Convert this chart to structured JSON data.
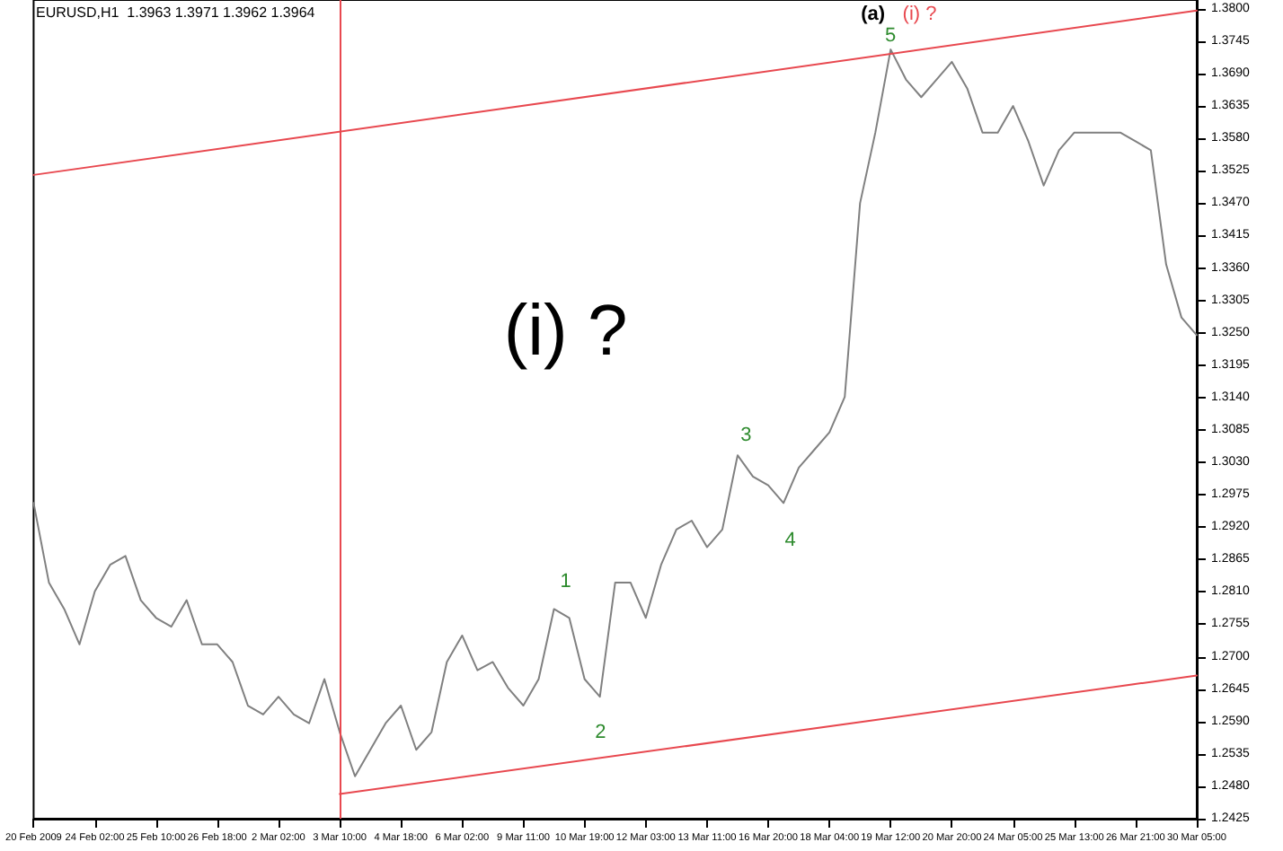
{
  "chart_data": {
    "type": "line",
    "title": "EURUSD,H1  1.3963 1.3971 1.3962 1.3964",
    "categories": [
      "20 Feb 2009",
      null,
      null,
      null,
      "24 Feb 02:00",
      null,
      null,
      null,
      "25 Feb 10:00",
      null,
      null,
      null,
      "26 Feb 18:00",
      null,
      null,
      null,
      "2 Mar 02:00",
      null,
      null,
      null,
      "3 Mar 10:00",
      null,
      null,
      null,
      "4 Mar 18:00",
      null,
      null,
      null,
      "6 Mar 02:00",
      null,
      null,
      null,
      "9 Mar 11:00",
      null,
      null,
      null,
      "10 Mar 19:00",
      null,
      null,
      null,
      "12 Mar 03:00",
      null,
      null,
      null,
      "13 Mar 11:00",
      null,
      null,
      null,
      "16 Mar 20:00",
      null,
      null,
      null,
      "18 Mar 04:00",
      null,
      null,
      null,
      "19 Mar 12:00",
      null,
      null,
      null,
      "20 Mar 20:00",
      null,
      null,
      null,
      "24 Mar 05:00",
      null,
      null,
      null,
      "25 Mar 13:00",
      null,
      null,
      null,
      "26 Mar 21:00",
      null,
      null,
      null,
      "30 Mar 05:00"
    ],
    "series": [
      {
        "color": "#808080",
        "values": [
          1.2961,
          1.2826,
          1.2781,
          1.2721,
          1.2811,
          1.2856,
          1.2871,
          1.2796,
          1.2766,
          1.2751,
          1.2796,
          1.2721,
          1.2721,
          1.2691,
          1.2617,
          1.2602,
          1.2632,
          1.2602,
          1.2587,
          1.2662,
          1.2572,
          1.2497,
          1.2542,
          1.2587,
          1.2617,
          1.2542,
          1.2572,
          1.2691,
          1.2736,
          1.2677,
          1.2691,
          1.2647,
          1.2617,
          1.2662,
          1.2781,
          1.2766,
          1.2662,
          1.2632,
          1.2826,
          1.2826,
          1.2766,
          1.2856,
          1.2916,
          1.2931,
          1.2886,
          1.2916,
          1.3042,
          1.3006,
          1.2991,
          1.2961,
          1.3021,
          1.3051,
          1.3081,
          1.3141,
          1.347,
          1.359,
          1.3731,
          1.368,
          1.365,
          1.368,
          1.371,
          1.3665,
          1.359,
          1.359,
          1.3635,
          1.3575,
          1.35,
          1.356,
          1.359,
          1.359,
          1.359,
          1.359,
          1.3575,
          1.356,
          1.3366,
          1.3276,
          1.3246
        ]
      },
      {
        "type": "line",
        "color": "#e8484f",
        "x": [
          "20 Feb 2009",
          "30 Mar 05:00"
        ],
        "values": [
          1.3518,
          1.3797
        ]
      },
      {
        "type": "line",
        "color": "#e8484f",
        "x": [
          "3 Mar 10:00",
          "30 Mar 05:00"
        ],
        "values": [
          1.2467,
          1.2668
        ]
      }
    ],
    "ref_lines": [
      {
        "axis": "x",
        "value": "3 Mar 10:00",
        "color": "#e8484f"
      }
    ],
    "annotations": [
      "(i) ?",
      "(a)",
      "(i) ?",
      "1",
      "2",
      "3",
      "4",
      "5"
    ],
    "ylim": [
      1.2425,
      1.3815
    ],
    "yticks": [
      1.2425,
      {
        "value": 1.248,
        "label": "1.2480"
      },
      1.2535,
      {
        "value": 1.259,
        "label": "1.2590"
      },
      1.2645,
      {
        "value": 1.27,
        "label": "1.2700"
      },
      1.2755,
      {
        "value": 1.281,
        "label": "1.2810"
      },
      1.2865,
      {
        "value": 1.292,
        "label": "1.2920"
      },
      1.2975,
      {
        "value": 1.303,
        "label": "1.3030"
      },
      1.3085,
      {
        "value": 1.314,
        "label": "1.3140"
      },
      1.3195,
      {
        "value": 1.325,
        "label": "1.3250"
      },
      1.3305,
      {
        "value": 1.336,
        "label": "1.3360"
      },
      1.3415,
      {
        "value": 1.347,
        "label": "1.3470"
      },
      1.3525,
      {
        "value": 1.358,
        "label": "1.3580"
      },
      1.3635,
      {
        "value": 1.369,
        "label": "1.3690"
      },
      1.3745,
      {
        "value": 1.38,
        "label": "1.3800"
      }
    ],
    "grid": false,
    "marker": "none",
    "line_style": "solid"
  }
}
